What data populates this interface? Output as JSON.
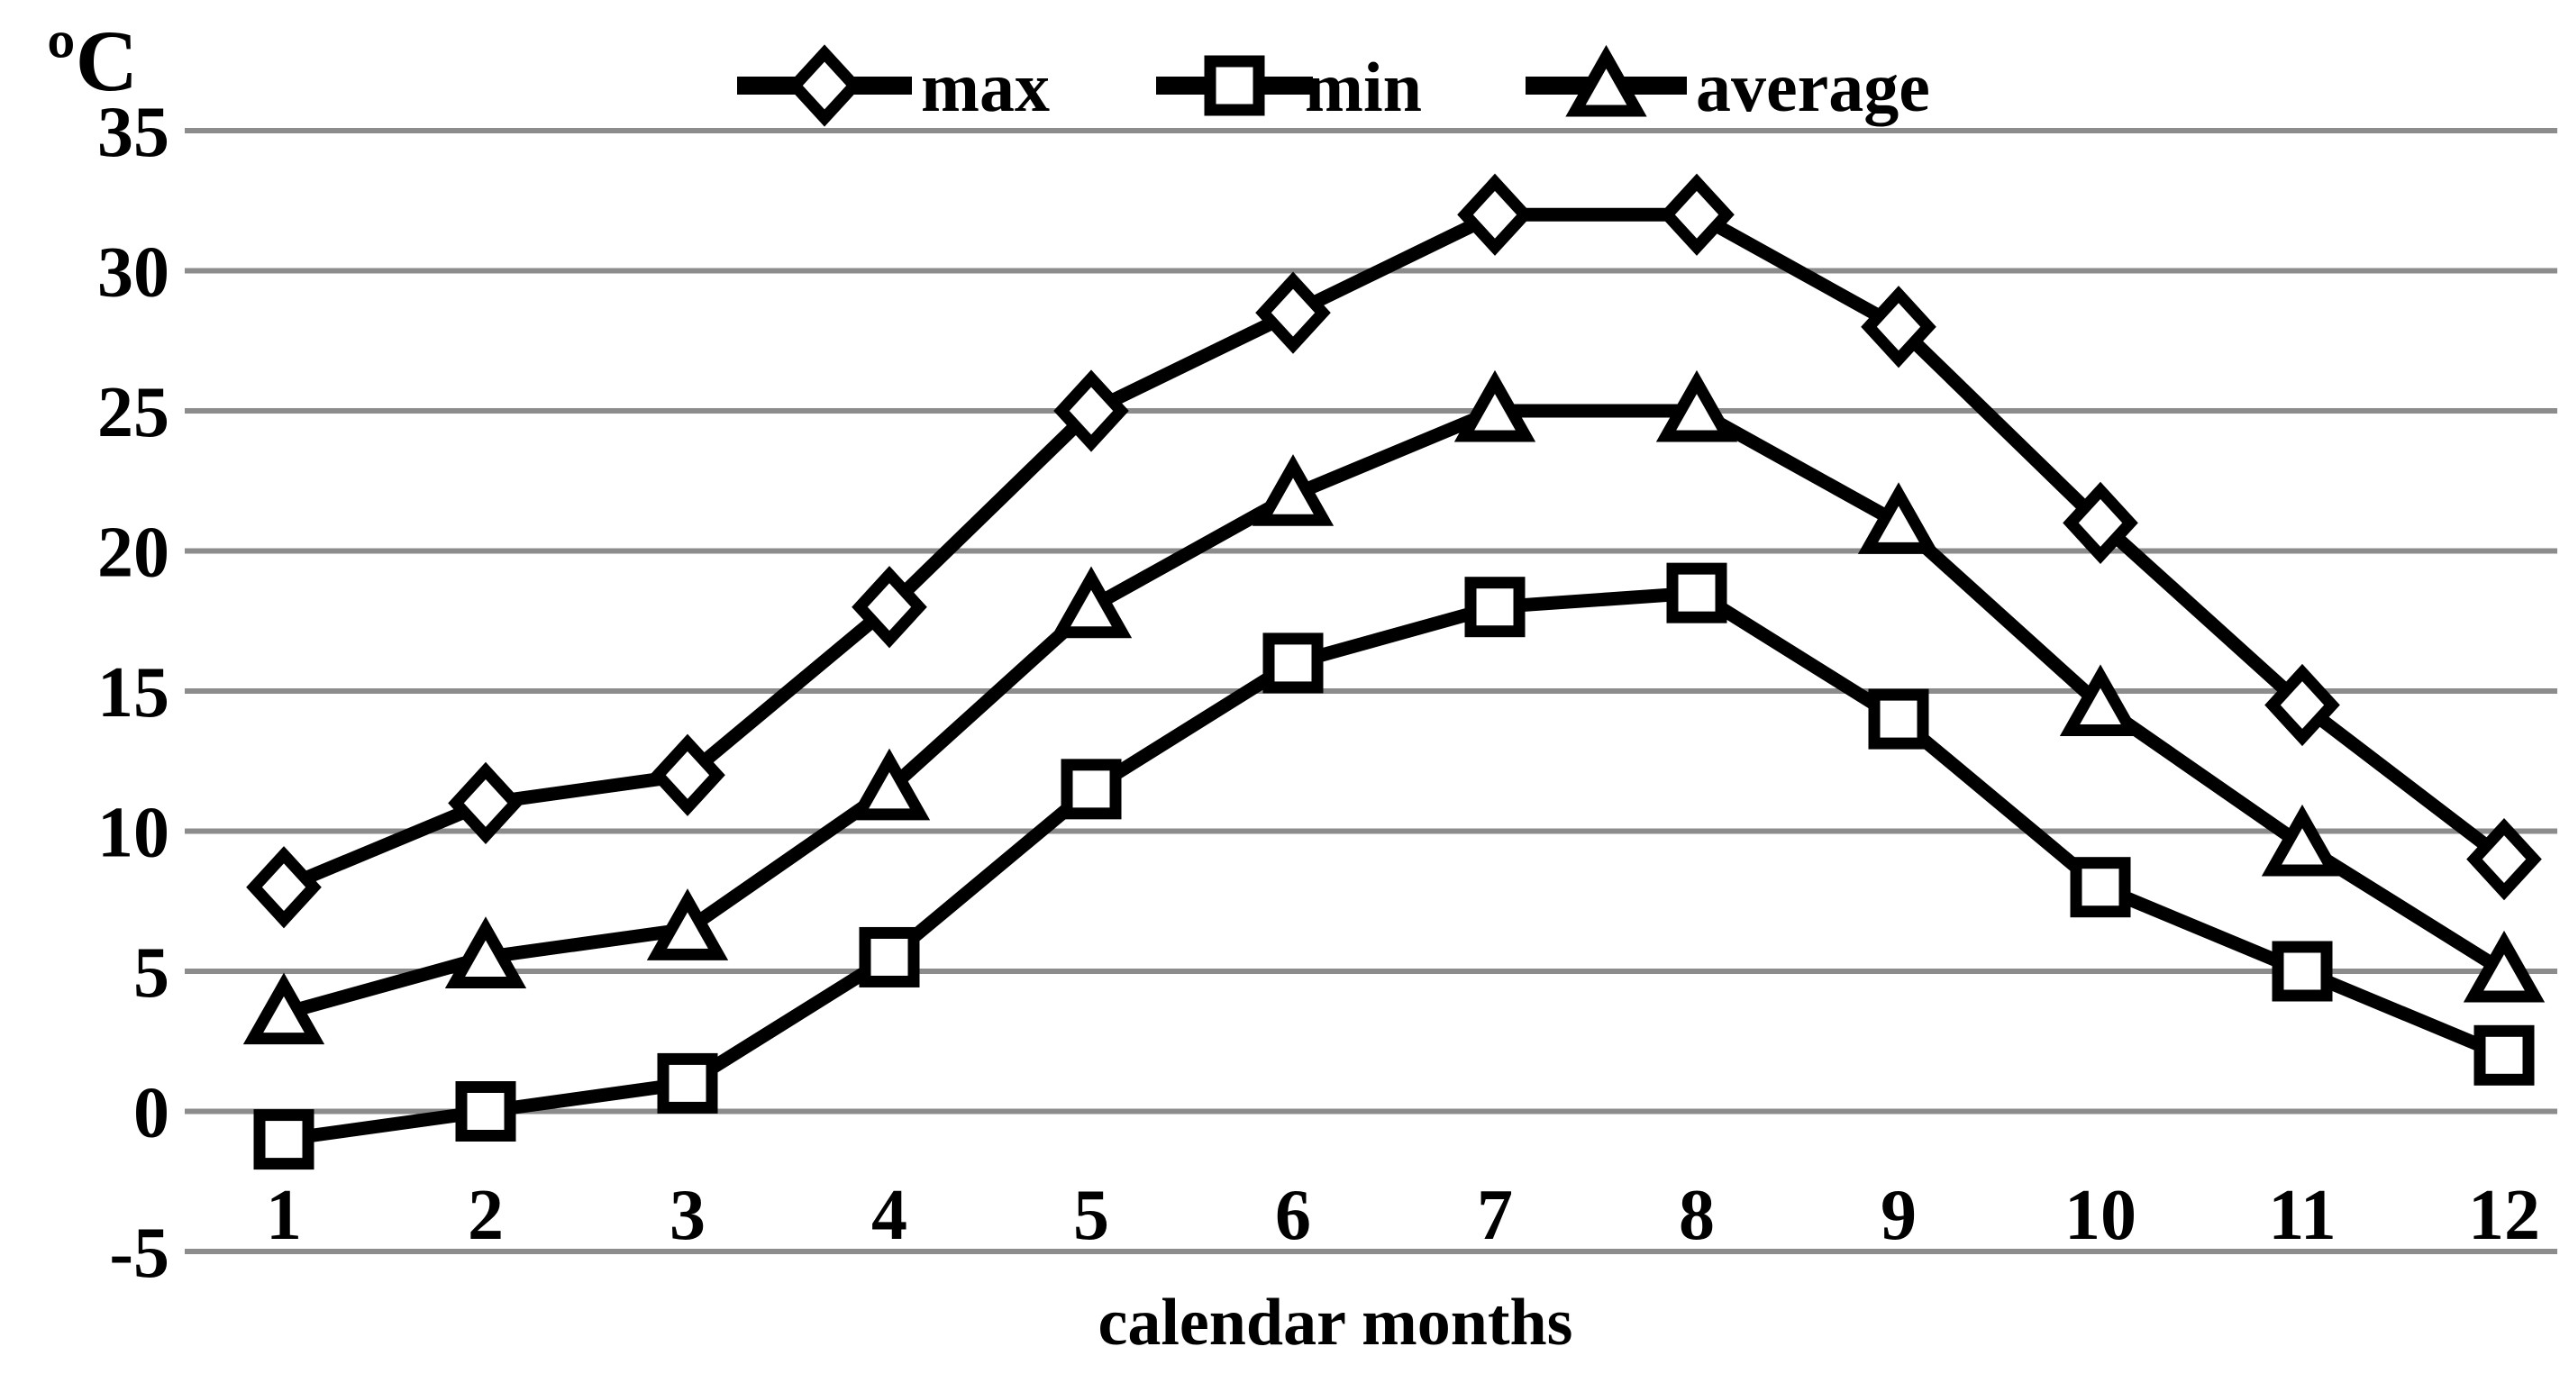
{
  "colors": {
    "background": "#ffffff",
    "series_line": "#000000",
    "marker_fill": "#ffffff",
    "gridline": "#8c8c8c",
    "text": "#000000"
  },
  "chart_data": {
    "type": "line",
    "title": "",
    "ylabel": "ºC",
    "xlabel": "calendar months",
    "x": [
      1,
      2,
      3,
      4,
      5,
      6,
      7,
      8,
      9,
      10,
      11,
      12
    ],
    "x_tick_labels": [
      "1",
      "2",
      "3",
      "4",
      "5",
      "6",
      "7",
      "8",
      "9",
      "10",
      "11",
      "12"
    ],
    "series": [
      {
        "name": "max",
        "marker": "diamond",
        "values": [
          8,
          11,
          12,
          18,
          25,
          28.5,
          32,
          32,
          28,
          21,
          14.5,
          9
        ]
      },
      {
        "name": "min",
        "marker": "square",
        "values": [
          -1,
          0,
          1,
          5.5,
          11.5,
          16,
          18,
          18.5,
          14,
          8,
          5,
          2
        ]
      },
      {
        "name": "average",
        "marker": "triangle",
        "values": [
          3.5,
          5.5,
          6.5,
          11.5,
          18,
          22,
          25,
          25,
          21,
          14.5,
          9.5,
          5
        ]
      }
    ],
    "ylim": [
      -5,
      35
    ],
    "yticks": [
      35,
      30,
      25,
      20,
      15,
      10,
      5,
      0,
      -5
    ],
    "grid": "horizontal-only",
    "legend_position": "top-center",
    "legend_entries": [
      "max",
      "min",
      "average"
    ]
  }
}
